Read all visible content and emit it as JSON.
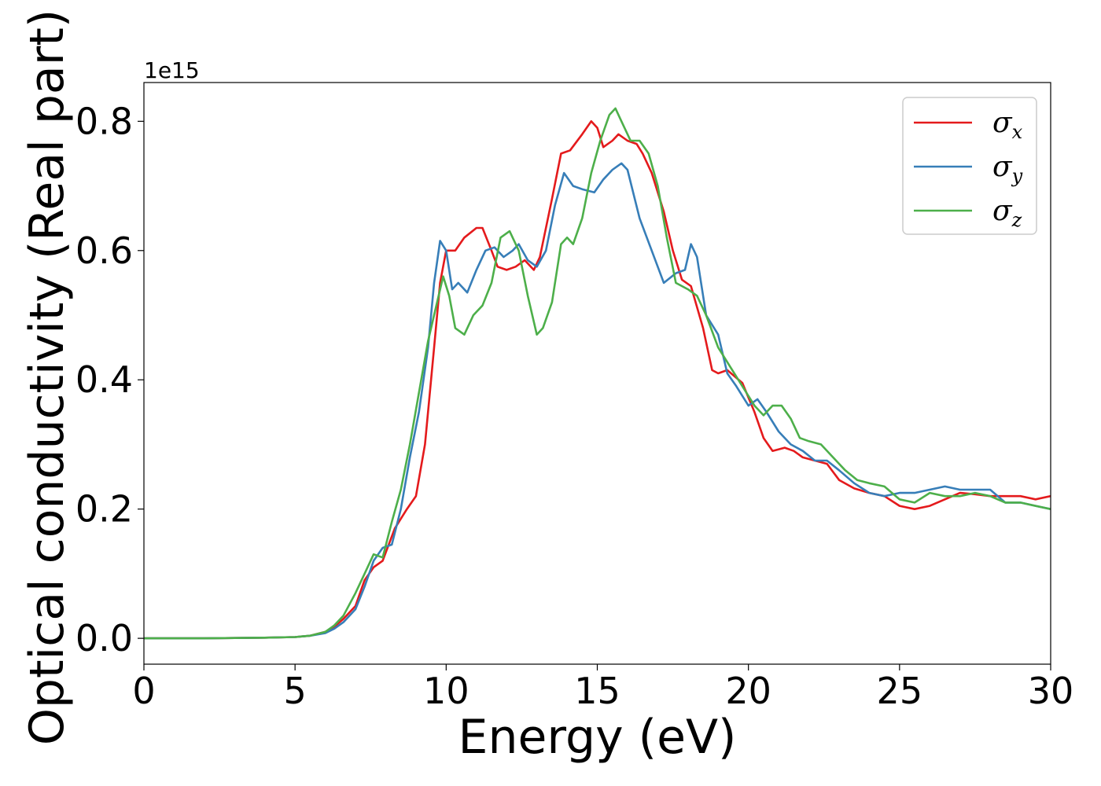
{
  "chart_data": {
    "type": "line",
    "xlabel": "Energy (eV)",
    "ylabel": "Optical conductivity (Real part)",
    "y_offset_label": "1e15",
    "xlim": [
      0,
      30
    ],
    "ylim": [
      -0.04,
      0.86
    ],
    "x_ticks": [
      0,
      5,
      10,
      15,
      20,
      25,
      30
    ],
    "x_tick_labels": [
      "0",
      "5",
      "10",
      "15",
      "20",
      "25",
      "30"
    ],
    "y_ticks": [
      0.0,
      0.2,
      0.4,
      0.6,
      0.8
    ],
    "y_tick_labels": [
      "0.0",
      "0.2",
      "0.4",
      "0.6",
      "0.8"
    ],
    "grid": false,
    "legend_position": "top-right",
    "series": [
      {
        "name": "σ",
        "subscript": "x",
        "color": "#e41a1c",
        "x": [
          0,
          2,
          4,
          5,
          5.5,
          6,
          6.3,
          6.6,
          7,
          7.3,
          7.6,
          7.9,
          8.3,
          8.7,
          9,
          9.3,
          9.6,
          9.8,
          10,
          10.3,
          10.6,
          11,
          11.2,
          11.5,
          11.7,
          12,
          12.3,
          12.6,
          12.9,
          13.1,
          13.5,
          13.8,
          14.1,
          14.5,
          14.8,
          15,
          15.2,
          15.5,
          15.7,
          16,
          16.3,
          16.5,
          16.8,
          17.2,
          17.5,
          17.8,
          18.1,
          18.5,
          18.8,
          19,
          19.3,
          19.8,
          20.2,
          20.5,
          20.8,
          21.2,
          21.5,
          21.8,
          22.2,
          22.6,
          23,
          23.5,
          24,
          24.5,
          25,
          25.5,
          26,
          26.5,
          27,
          27.5,
          28,
          28.5,
          29,
          29.5,
          30
        ],
        "values": [
          0,
          0.0,
          0.001,
          0.002,
          0.004,
          0.01,
          0.018,
          0.03,
          0.05,
          0.09,
          0.11,
          0.12,
          0.17,
          0.2,
          0.22,
          0.3,
          0.45,
          0.55,
          0.6,
          0.6,
          0.62,
          0.635,
          0.635,
          0.6,
          0.575,
          0.57,
          0.575,
          0.585,
          0.57,
          0.59,
          0.68,
          0.75,
          0.755,
          0.78,
          0.8,
          0.79,
          0.76,
          0.77,
          0.78,
          0.77,
          0.765,
          0.75,
          0.72,
          0.66,
          0.6,
          0.555,
          0.545,
          0.48,
          0.415,
          0.41,
          0.415,
          0.395,
          0.35,
          0.31,
          0.29,
          0.295,
          0.29,
          0.28,
          0.275,
          0.27,
          0.245,
          0.232,
          0.225,
          0.22,
          0.205,
          0.2,
          0.205,
          0.215,
          0.225,
          0.223,
          0.22,
          0.22,
          0.22,
          0.215,
          0.22
        ]
      },
      {
        "name": "σ",
        "subscript": "y",
        "color": "#377eb8",
        "x": [
          0,
          2,
          4,
          5,
          5.5,
          6,
          6.3,
          6.6,
          7,
          7.3,
          7.6,
          7.9,
          8.2,
          8.5,
          8.8,
          9.1,
          9.4,
          9.6,
          9.8,
          10,
          10.2,
          10.4,
          10.7,
          11,
          11.3,
          11.6,
          11.9,
          12.2,
          12.4,
          12.7,
          13,
          13.3,
          13.6,
          13.9,
          14.2,
          14.5,
          14.9,
          15.2,
          15.5,
          15.8,
          16,
          16.4,
          16.8,
          17.2,
          17.6,
          17.9,
          18.1,
          18.3,
          18.6,
          19,
          19.3,
          19.6,
          20,
          20.3,
          20.6,
          21,
          21.4,
          21.8,
          22.2,
          22.6,
          23,
          23.5,
          24,
          24.5,
          25,
          25.5,
          26,
          26.5,
          27,
          27.5,
          28,
          28.5,
          29,
          29.5,
          30
        ],
        "values": [
          0,
          0.0,
          0.001,
          0.002,
          0.004,
          0.008,
          0.015,
          0.025,
          0.045,
          0.08,
          0.12,
          0.14,
          0.145,
          0.2,
          0.28,
          0.35,
          0.45,
          0.55,
          0.615,
          0.6,
          0.54,
          0.55,
          0.535,
          0.57,
          0.6,
          0.605,
          0.59,
          0.6,
          0.61,
          0.585,
          0.575,
          0.6,
          0.67,
          0.72,
          0.7,
          0.695,
          0.69,
          0.71,
          0.725,
          0.735,
          0.725,
          0.65,
          0.6,
          0.55,
          0.565,
          0.57,
          0.61,
          0.59,
          0.5,
          0.47,
          0.41,
          0.39,
          0.36,
          0.37,
          0.35,
          0.32,
          0.3,
          0.29,
          0.275,
          0.275,
          0.26,
          0.24,
          0.225,
          0.22,
          0.225,
          0.225,
          0.23,
          0.235,
          0.23,
          0.23,
          0.23,
          0.21,
          0.21,
          0.205,
          0.2
        ]
      },
      {
        "name": "σ",
        "subscript": "z",
        "color": "#4daf4a",
        "x": [
          0,
          2,
          4,
          5,
          5.5,
          6,
          6.3,
          6.6,
          7,
          7.3,
          7.6,
          7.9,
          8.2,
          8.5,
          8.8,
          9.1,
          9.4,
          9.7,
          9.9,
          10.1,
          10.3,
          10.6,
          10.9,
          11.2,
          11.5,
          11.8,
          12.1,
          12.4,
          12.7,
          13,
          13.2,
          13.5,
          13.8,
          14,
          14.2,
          14.5,
          14.8,
          15.1,
          15.4,
          15.6,
          15.8,
          16.1,
          16.4,
          16.7,
          17,
          17.3,
          17.6,
          18,
          18.3,
          18.6,
          19,
          19.4,
          19.8,
          20.2,
          20.5,
          20.8,
          21.1,
          21.4,
          21.7,
          22,
          22.4,
          22.8,
          23.2,
          23.6,
          24,
          24.5,
          25,
          25.5,
          26,
          26.5,
          27,
          27.5,
          28,
          28.5,
          29,
          29.5,
          30
        ],
        "values": [
          0,
          0.0,
          0.001,
          0.002,
          0.004,
          0.01,
          0.02,
          0.035,
          0.07,
          0.1,
          0.13,
          0.125,
          0.18,
          0.23,
          0.3,
          0.38,
          0.46,
          0.52,
          0.56,
          0.53,
          0.48,
          0.47,
          0.5,
          0.515,
          0.55,
          0.62,
          0.63,
          0.6,
          0.53,
          0.47,
          0.48,
          0.52,
          0.61,
          0.62,
          0.61,
          0.65,
          0.72,
          0.77,
          0.81,
          0.82,
          0.8,
          0.77,
          0.77,
          0.75,
          0.7,
          0.62,
          0.55,
          0.54,
          0.53,
          0.5,
          0.45,
          0.42,
          0.39,
          0.36,
          0.345,
          0.36,
          0.36,
          0.34,
          0.31,
          0.305,
          0.3,
          0.28,
          0.26,
          0.245,
          0.24,
          0.235,
          0.215,
          0.21,
          0.225,
          0.22,
          0.22,
          0.225,
          0.22,
          0.21,
          0.21,
          0.205,
          0.2
        ]
      }
    ]
  }
}
